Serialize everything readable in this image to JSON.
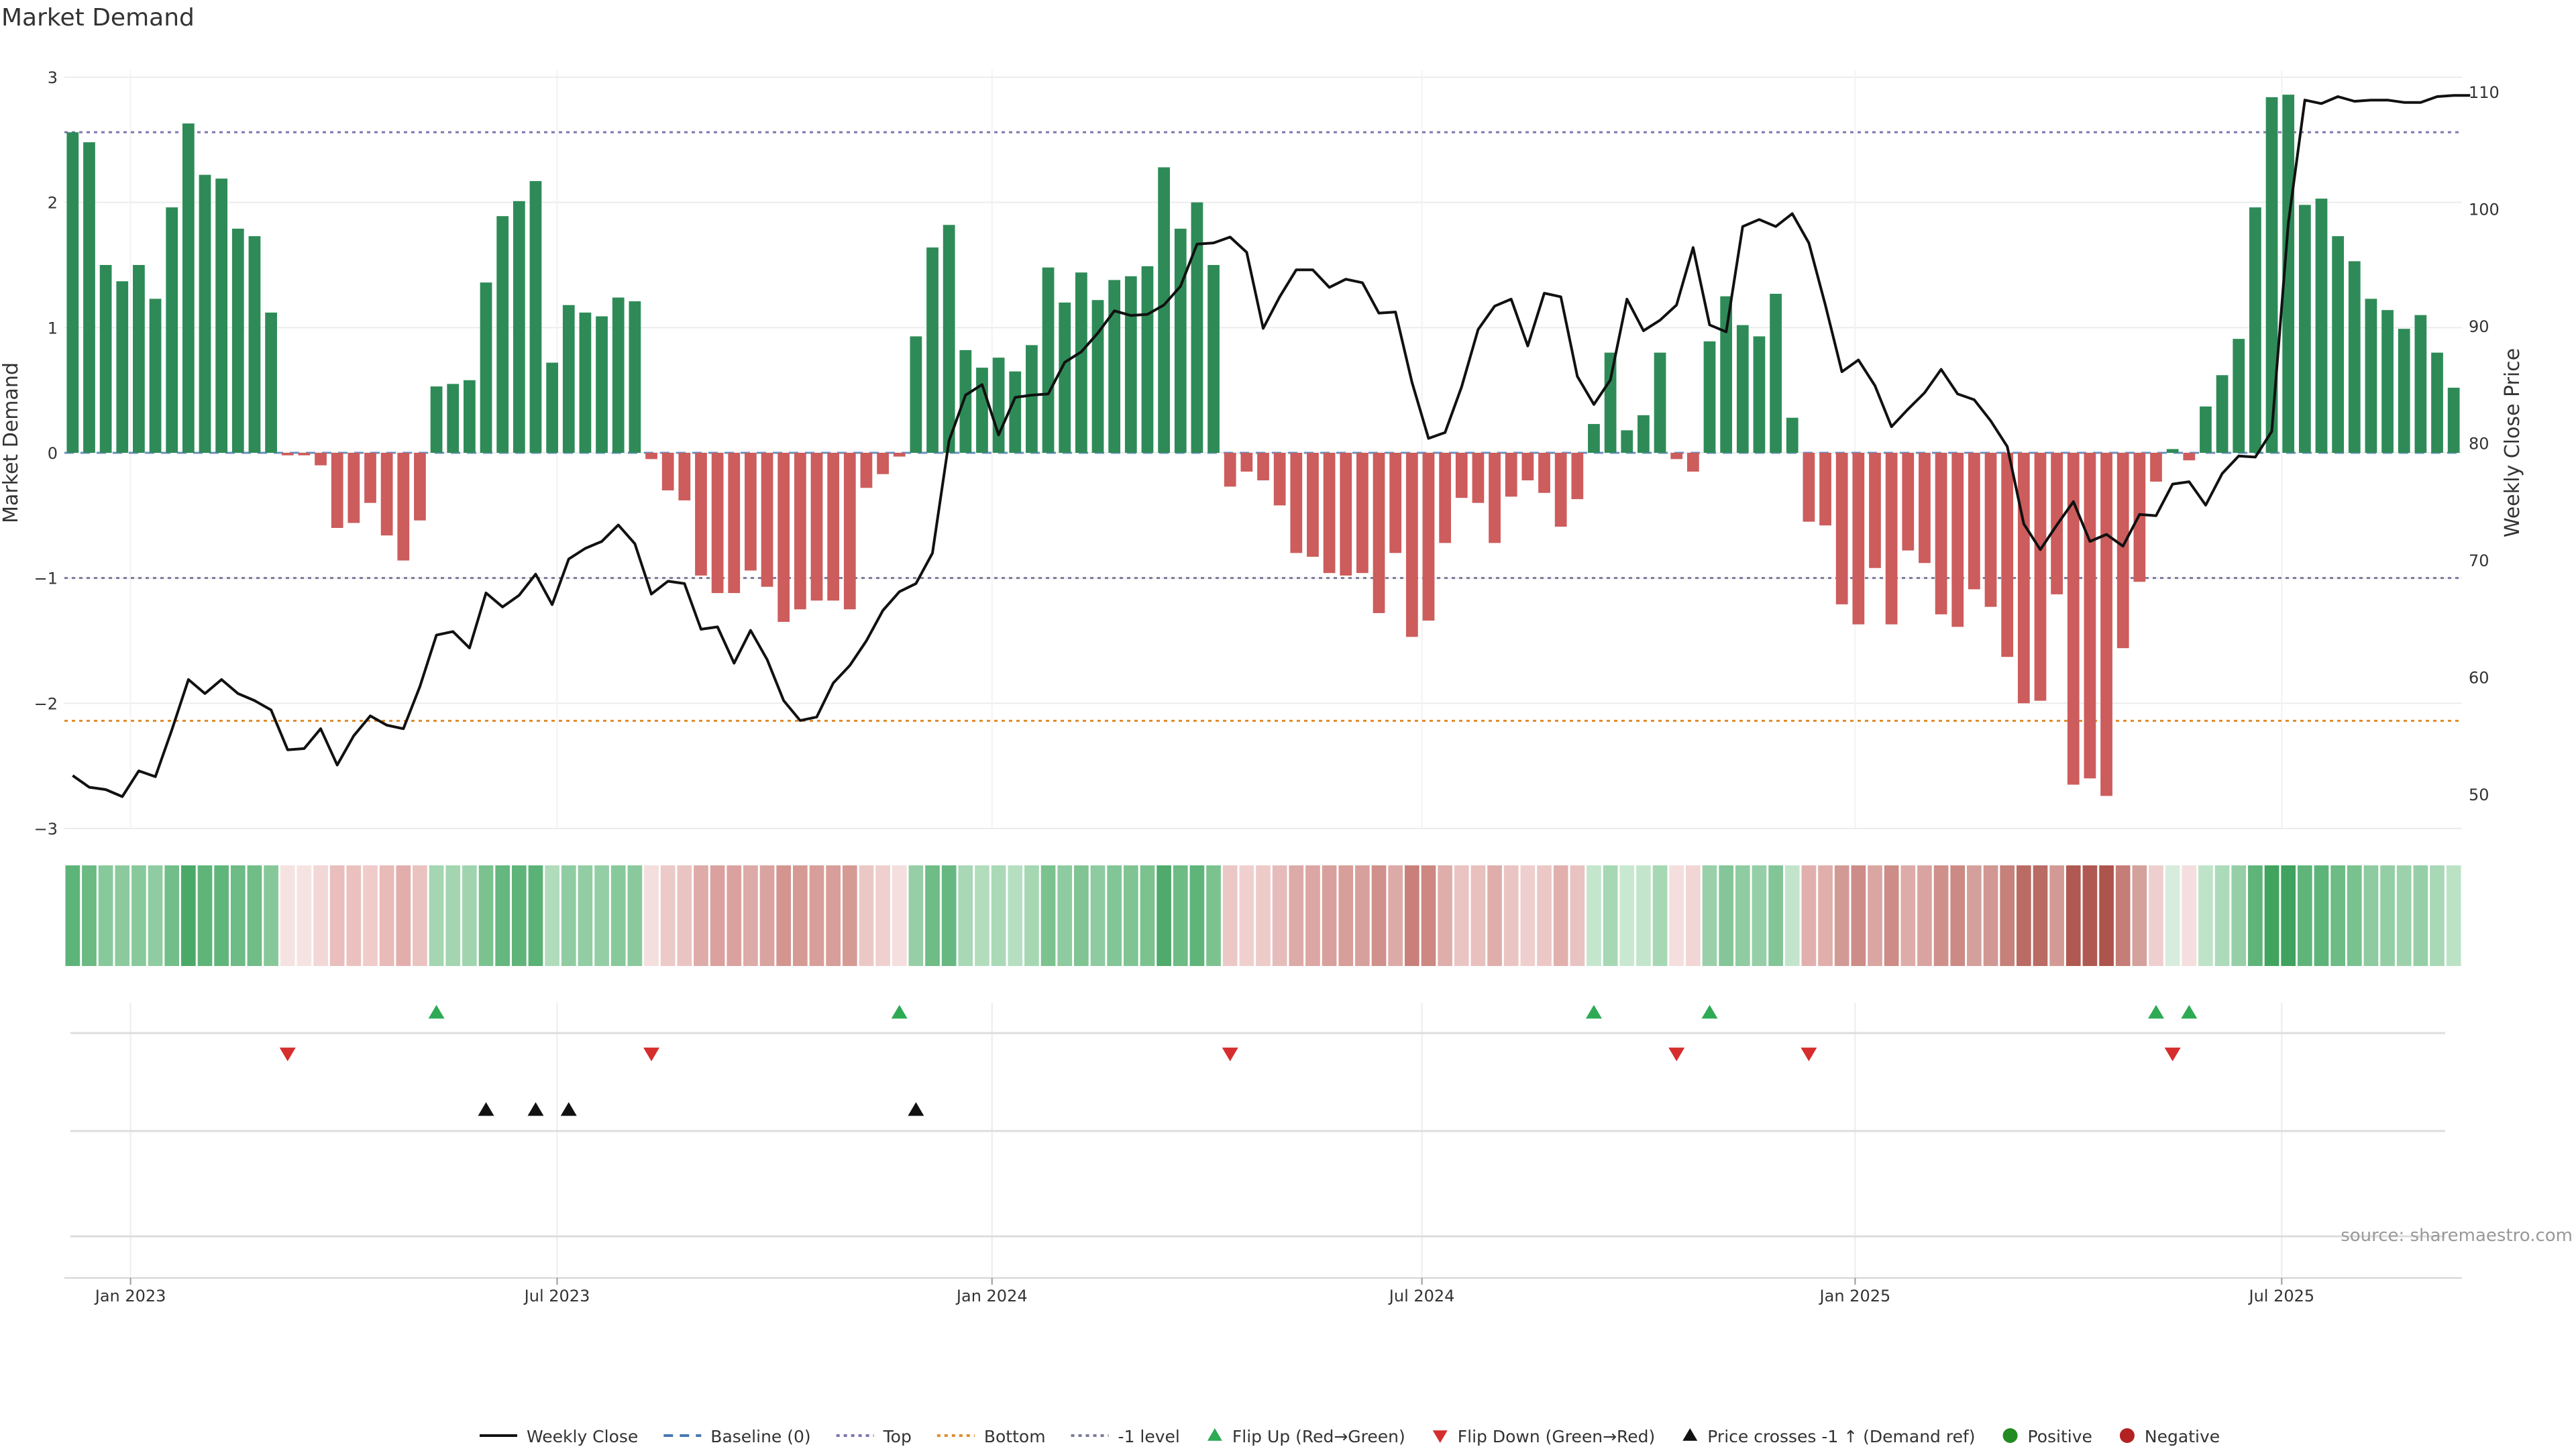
{
  "chart_data": {
    "type": "bar",
    "title": "Market Demand",
    "ylabel": "Market Demand",
    "y2label": "Weekly Close Price",
    "ylim": [
      -3,
      3
    ],
    "y2lim": [
      45,
      111
    ],
    "y_ticks": [
      3,
      2,
      1,
      0,
      -1,
      -2,
      -3
    ],
    "y_tick_labels": [
      "3",
      "2",
      "1",
      "0",
      "−1",
      "−2",
      "−3"
    ],
    "y2_ticks": [
      110,
      100,
      90,
      80,
      70,
      60,
      50
    ],
    "x_ticks": [
      {
        "label": "Jan 2023",
        "index": 3.5
      },
      {
        "label": "Jul 2023",
        "index": 29.3
      },
      {
        "label": "Jan 2024",
        "index": 55.6
      },
      {
        "label": "Jul 2024",
        "index": 81.6
      },
      {
        "label": "Jan 2025",
        "index": 107.8
      },
      {
        "label": "Jul 2025",
        "index": 133.6
      }
    ],
    "reference_lines": {
      "top": 2.56,
      "bottom": -2.14,
      "minus_one": -1.0,
      "baseline": 0
    },
    "demand": [
      2.56,
      2.48,
      1.5,
      1.37,
      1.5,
      1.23,
      1.96,
      2.63,
      2.22,
      2.19,
      1.79,
      1.73,
      1.12,
      -0.02,
      -0.02,
      -0.1,
      -0.6,
      -0.56,
      -0.4,
      -0.66,
      -0.86,
      -0.54,
      0.53,
      0.55,
      0.58,
      1.36,
      1.89,
      2.01,
      2.17,
      0.72,
      1.18,
      1.12,
      1.09,
      1.24,
      1.21,
      -0.05,
      -0.3,
      -0.38,
      -0.98,
      -1.12,
      -1.12,
      -0.94,
      -1.07,
      -1.35,
      -1.25,
      -1.18,
      -1.18,
      -1.25,
      -0.28,
      -0.17,
      -0.03,
      0.93,
      1.64,
      1.82,
      0.82,
      0.68,
      0.76,
      0.65,
      0.86,
      1.48,
      1.2,
      1.44,
      1.22,
      1.38,
      1.41,
      1.49,
      2.28,
      1.79,
      2.0,
      1.5,
      -0.27,
      -0.15,
      -0.22,
      -0.42,
      -0.8,
      -0.83,
      -0.96,
      -0.98,
      -0.96,
      -1.28,
      -0.8,
      -1.47,
      -1.34,
      -0.72,
      -0.36,
      -0.4,
      -0.72,
      -0.35,
      -0.22,
      -0.32,
      -0.59,
      -0.37,
      0.23,
      0.8,
      0.18,
      0.3,
      0.8,
      -0.05,
      -0.15,
      0.89,
      1.25,
      1.02,
      0.93,
      1.27,
      0.28,
      -0.55,
      -0.58,
      -1.21,
      -1.37,
      -0.92,
      -1.37,
      -0.78,
      -0.88,
      -1.29,
      -1.39,
      -1.09,
      -1.23,
      -1.63,
      -2.0,
      -1.98,
      -1.13,
      -2.65,
      -2.6,
      -2.74,
      -1.56,
      -1.03,
      -0.23,
      0.03,
      -0.06,
      0.37,
      0.62,
      0.91,
      1.96,
      2.84,
      2.86,
      1.98,
      2.03,
      1.73,
      1.53,
      1.23,
      1.14,
      0.99,
      1.1,
      0.8,
      0.52
    ],
    "weekly_close": [
      51.6,
      50.6,
      50.4,
      49.8,
      52.0,
      51.5,
      55.5,
      59.8,
      58.6,
      59.8,
      58.6,
      58.0,
      57.2,
      53.8,
      53.9,
      55.6,
      52.5,
      55.0,
      56.7,
      55.9,
      55.6,
      59.2,
      63.6,
      63.9,
      62.5,
      67.2,
      66.0,
      67.0,
      68.8,
      66.2,
      70.1,
      71.0,
      71.6,
      73.0,
      71.4,
      67.1,
      68.2,
      68.0,
      64.1,
      64.3,
      61.2,
      64.0,
      61.5,
      58.0,
      56.3,
      56.6,
      59.5,
      61.0,
      63.1,
      65.7,
      67.3,
      68.0,
      70.6,
      80.2,
      84.1,
      85.0,
      80.7,
      83.9,
      84.1,
      84.2,
      86.9,
      87.8,
      89.4,
      91.3,
      90.9,
      91.0,
      91.8,
      93.4,
      97.0,
      97.1,
      97.6,
      96.3,
      89.8,
      92.5,
      94.8,
      94.8,
      93.3,
      94.0,
      93.7,
      91.1,
      91.2,
      85.2,
      80.4,
      80.9,
      84.8,
      89.7,
      91.7,
      92.3,
      88.3,
      92.8,
      92.5,
      85.7,
      83.3,
      85.4,
      92.3,
      89.6,
      90.5,
      91.8,
      96.7,
      90.1,
      89.5,
      98.5,
      99.1,
      98.5,
      99.6,
      97.1,
      91.8,
      86.1,
      87.1,
      84.9,
      81.4,
      82.9,
      84.3,
      86.3,
      84.2,
      83.7,
      81.9,
      79.7,
      73.1,
      70.9,
      73.0,
      75.0,
      71.6,
      72.2,
      71.2,
      73.9,
      73.8,
      76.5,
      76.7,
      74.7,
      77.4,
      78.9,
      78.8,
      81.0,
      98.8,
      109.3,
      109.0,
      109.6,
      109.2,
      109.3,
      109.3,
      109.1,
      109.1,
      109.6,
      109.7,
      109.7
    ],
    "strip_colors": [
      "#5db478",
      "#6aba82",
      "#88c99b",
      "#8cca9e",
      "#88c99b",
      "#8fcca1",
      "#72be88",
      "#4ba968",
      "#5fb47a",
      "#60b57b",
      "#6dbb85",
      "#70bd87",
      "#87c89a",
      "#f5e3e2",
      "#f5e3e2",
      "#f2d7d6",
      "#e9bebc",
      "#ebc1bf",
      "#efcbc9",
      "#e8bab8",
      "#e2aeac",
      "#eac3c1",
      "#a3d6b1",
      "#a2d5b0",
      "#a0d4af",
      "#7bc28f",
      "#64b77e",
      "#5fb47a",
      "#5ab277",
      "#b0dcbb",
      "#8fcca1",
      "#92cda3",
      "#94cea5",
      "#88c99b",
      "#8ac99c",
      "#f4dfde",
      "#eccac8",
      "#eac4c2",
      "#deaba8",
      "#daa19e",
      "#daa19e",
      "#dcaaa7",
      "#d9a3a0",
      "#d4958f",
      "#d69a95",
      "#d89e99",
      "#d89e99",
      "#d69a95",
      "#ebc8c6",
      "#efd0ce",
      "#f4dfde",
      "#96cfa7",
      "#6fbc86",
      "#66b880",
      "#a8d8b6",
      "#b1ddbc",
      "#aad9b7",
      "#b5dfc0",
      "#a5d7b3",
      "#7bc28f",
      "#8ecba0",
      "#80c494",
      "#8ecba0",
      "#82c596",
      "#80c494",
      "#7bc28f",
      "#4faa6c",
      "#6dbb85",
      "#5fb47a",
      "#7bc28f",
      "#ebc8c6",
      "#efd0ce",
      "#edcbc9",
      "#e6bcba",
      "#dcaaa7",
      "#dba6a3",
      "#d8a09c",
      "#d89e99",
      "#d8a09c",
      "#d0908b",
      "#dcaaa7",
      "#c9807a",
      "#ce8882",
      "#dfaeab",
      "#eac4c2",
      "#e8c0be",
      "#dfaeab",
      "#eac4c2",
      "#eecfcd",
      "#ebc8c6",
      "#e1b0ad",
      "#e9c3c1",
      "#c4e6cd",
      "#a6d8b4",
      "#c9e8d1",
      "#c3e5cc",
      "#a6d8b4",
      "#f4dfde",
      "#f1d6d5",
      "#9ad0a9",
      "#84c697",
      "#8fcca1",
      "#96cfa7",
      "#82c596",
      "#c2e4cb",
      "#e1b0ad",
      "#e0aeab",
      "#d29a95",
      "#cd8c87",
      "#daa6a2",
      "#cd8c87",
      "#ddaca9",
      "#d9a4a0",
      "#cf908b",
      "#cc8a85",
      "#d4a09b",
      "#d19792",
      "#c6817b",
      "#b96b64",
      "#b96b64",
      "#d39a95",
      "#b05952",
      "#b05952",
      "#ad544d",
      "#c57d77",
      "#d5a19c",
      "#eecfcd",
      "#d8ecde",
      "#f4dfde",
      "#bfe3c9",
      "#acdbb9",
      "#96cfa7",
      "#5fb47a",
      "#40a45f",
      "#3fa25e",
      "#5fb47a",
      "#5db478",
      "#6dbb85",
      "#79c18e",
      "#8ecba0",
      "#94cea5",
      "#9cd2ab",
      "#96cfa7",
      "#a8d8b6",
      "#bce2c6"
    ],
    "flip_up": [
      22,
      50,
      92,
      99,
      126,
      128
    ],
    "flip_down": [
      13,
      35,
      70,
      97,
      105,
      127
    ],
    "price_cross": [
      25,
      28,
      30,
      51
    ],
    "legend": [
      {
        "label": "Weekly Close",
        "type": "line",
        "color": "#111111"
      },
      {
        "label": "Baseline (0)",
        "type": "dash",
        "color": "#4a77b5"
      },
      {
        "label": "Top",
        "type": "dot",
        "color": "#7f74b0"
      },
      {
        "label": "Bottom",
        "type": "dot",
        "color": "#e08e2e"
      },
      {
        "label": "-1 level",
        "type": "dot",
        "color": "#7a7a9a"
      },
      {
        "label": "Flip Up (Red→Green)",
        "type": "triangle-up",
        "color": "#2eaa55"
      },
      {
        "label": "Flip Down (Green→Red)",
        "type": "triangle-down",
        "color": "#d62d2d"
      },
      {
        "label": "Price crosses -1 ↑ (Demand ref)",
        "type": "triangle-up",
        "color": "#111111"
      },
      {
        "label": "Positive",
        "type": "circle",
        "color": "#228b22"
      },
      {
        "label": "Negative",
        "type": "circle",
        "color": "#b22222"
      }
    ],
    "source": "source: sharemaestro.com"
  },
  "colors": {
    "positive": "#2e8b57",
    "negative": "#cd5c5c",
    "line": "#111111",
    "top": "#7f74b0",
    "bottom": "#e08e2e",
    "minus_one": "#7a7a9a",
    "baseline": "#4a77b5",
    "flip_up": "#2eaa55",
    "flip_down": "#d62d2d",
    "cross": "#111111"
  }
}
